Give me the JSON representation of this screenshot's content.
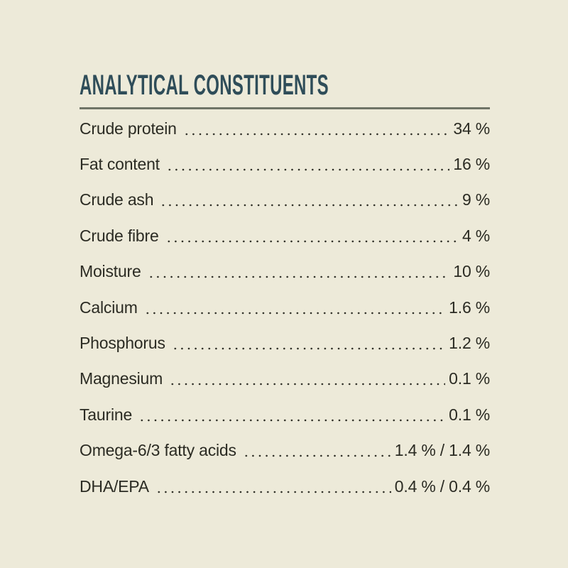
{
  "colors": {
    "background": "#EDEAD9",
    "title": "#2F4D59",
    "rule": "#6F7467",
    "text": "#2B2B23"
  },
  "label_panel": {
    "title": "ANALYTICAL CONSTITUENTS",
    "rows": [
      {
        "label": "Crude protein",
        "value": "34 %"
      },
      {
        "label": "Fat content",
        "value": "16 %"
      },
      {
        "label": "Crude ash",
        "value": "9 %"
      },
      {
        "label": "Crude fibre",
        "value": "4 %"
      },
      {
        "label": "Moisture",
        "value": "10 %"
      },
      {
        "label": "Calcium",
        "value": "1.6 %"
      },
      {
        "label": "Phosphorus",
        "value": "1.2 %"
      },
      {
        "label": "Magnesium",
        "value": "0.1 %"
      },
      {
        "label": "Taurine",
        "value": "0.1 %"
      },
      {
        "label": "Omega-6/3 fatty acids",
        "value": "1.4 % / 1.4 %"
      },
      {
        "label": "DHA/EPA",
        "value": "0.4 % / 0.4 %"
      }
    ]
  }
}
